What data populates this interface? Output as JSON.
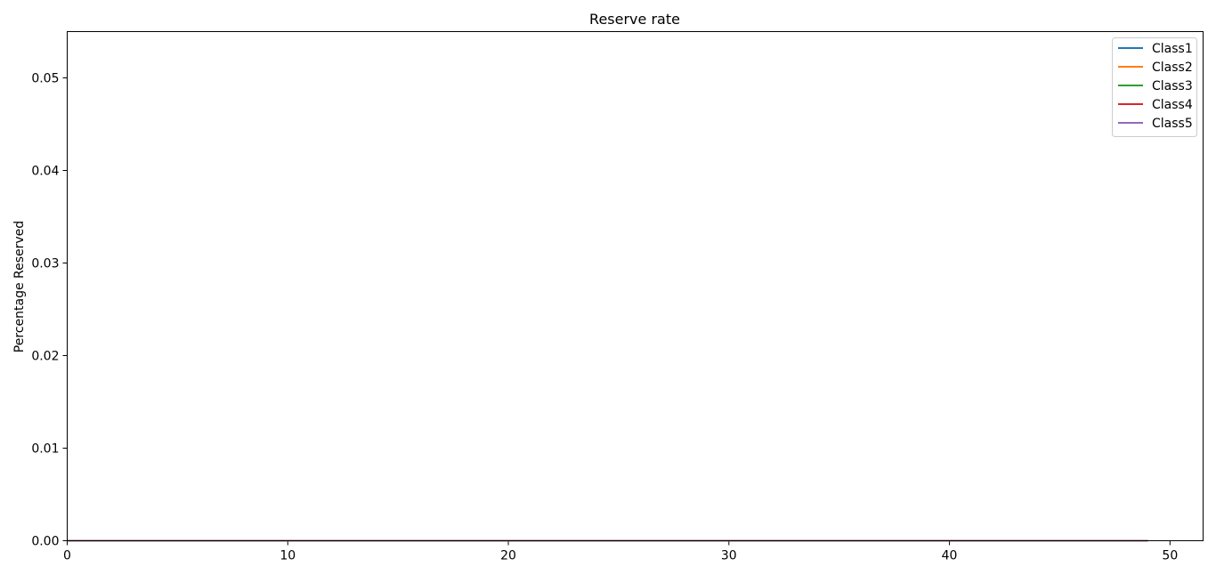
{
  "chart_data": {
    "type": "line",
    "title": "Reserve rate",
    "xlabel": "",
    "ylabel": "Percentage Reserved",
    "xlim": [
      0,
      51.5
    ],
    "ylim": [
      0,
      0.055
    ],
    "x_ticks": [
      0,
      10,
      20,
      30,
      40,
      50
    ],
    "x_tick_labels": [
      "0",
      "10",
      "20",
      "30",
      "40",
      "50"
    ],
    "y_ticks": [
      0,
      0.01,
      0.02,
      0.03,
      0.04,
      0.05
    ],
    "y_tick_labels": [
      "0.00",
      "0.01",
      "0.02",
      "0.03",
      "0.04",
      "0.05"
    ],
    "grid": false,
    "legend_position": "top-right",
    "x": [
      0,
      1,
      2,
      3,
      4,
      5,
      6,
      7,
      8,
      9,
      10,
      11,
      12,
      13,
      14,
      15,
      16,
      17,
      18,
      19,
      20,
      21,
      22,
      23,
      24,
      25,
      26,
      27,
      28,
      29,
      30,
      31,
      32,
      33,
      34,
      35,
      36,
      37,
      38,
      39,
      40,
      41,
      42,
      43,
      44,
      45,
      46,
      47,
      48,
      49
    ],
    "series": [
      {
        "name": "Class1",
        "color": "#1f77b4",
        "values": [
          0,
          0,
          0,
          0,
          0,
          0,
          0,
          0,
          0,
          0,
          0,
          0,
          0,
          0,
          0,
          0,
          0,
          0,
          0,
          0,
          0,
          0,
          0,
          0,
          0,
          0,
          0,
          0,
          0,
          0,
          0,
          0,
          0,
          0,
          0,
          0,
          0,
          0,
          0,
          0,
          0,
          0,
          0,
          0,
          0,
          0,
          0,
          0,
          0,
          0
        ]
      },
      {
        "name": "Class2",
        "color": "#ff7f0e",
        "values": [
          0,
          0,
          0,
          0,
          0,
          0,
          0,
          0,
          0,
          0,
          0,
          0,
          0,
          0,
          0,
          0,
          0,
          0,
          0,
          0,
          0,
          0,
          0,
          0,
          0,
          0,
          0,
          0,
          0,
          0,
          0,
          0,
          0,
          0,
          0,
          0,
          0,
          0,
          0,
          0,
          0,
          0,
          0,
          0,
          0,
          0,
          0,
          0,
          0,
          0
        ]
      },
      {
        "name": "Class3",
        "color": "#2ca02c",
        "values": [
          0,
          0,
          0,
          0,
          0,
          0,
          0,
          0,
          0,
          0,
          0,
          0,
          0,
          0,
          0,
          0,
          0,
          0,
          0,
          0,
          0,
          0,
          0,
          0,
          0,
          0,
          0,
          0,
          0,
          0,
          0,
          0,
          0,
          0,
          0,
          0,
          0,
          0,
          0,
          0,
          0,
          0,
          0,
          0,
          0,
          0,
          0,
          0,
          0,
          0
        ]
      },
      {
        "name": "Class4",
        "color": "#d62728",
        "values": [
          0,
          0,
          0,
          0,
          0,
          0,
          0,
          0,
          0,
          0,
          0,
          0,
          0,
          0,
          0,
          0,
          0,
          0,
          0,
          0,
          0,
          0,
          0,
          0,
          0,
          0,
          0,
          0,
          0,
          0,
          0,
          0,
          0,
          0,
          0,
          0,
          0,
          0,
          0,
          0,
          0,
          0,
          0,
          0,
          0,
          0,
          0,
          0,
          0,
          0
        ]
      },
      {
        "name": "Class5",
        "color": "#9467bd",
        "values": [
          0,
          0,
          0,
          0,
          0,
          0,
          0,
          0,
          0,
          0,
          0,
          0,
          0,
          0,
          0,
          0,
          0,
          0,
          0,
          0,
          0,
          0,
          0,
          0,
          0,
          0,
          0,
          0,
          0,
          0,
          0,
          0,
          0,
          0,
          0,
          0,
          0,
          0,
          0,
          0,
          0,
          0,
          0,
          0,
          0,
          0,
          0,
          0,
          0,
          0
        ]
      }
    ]
  }
}
